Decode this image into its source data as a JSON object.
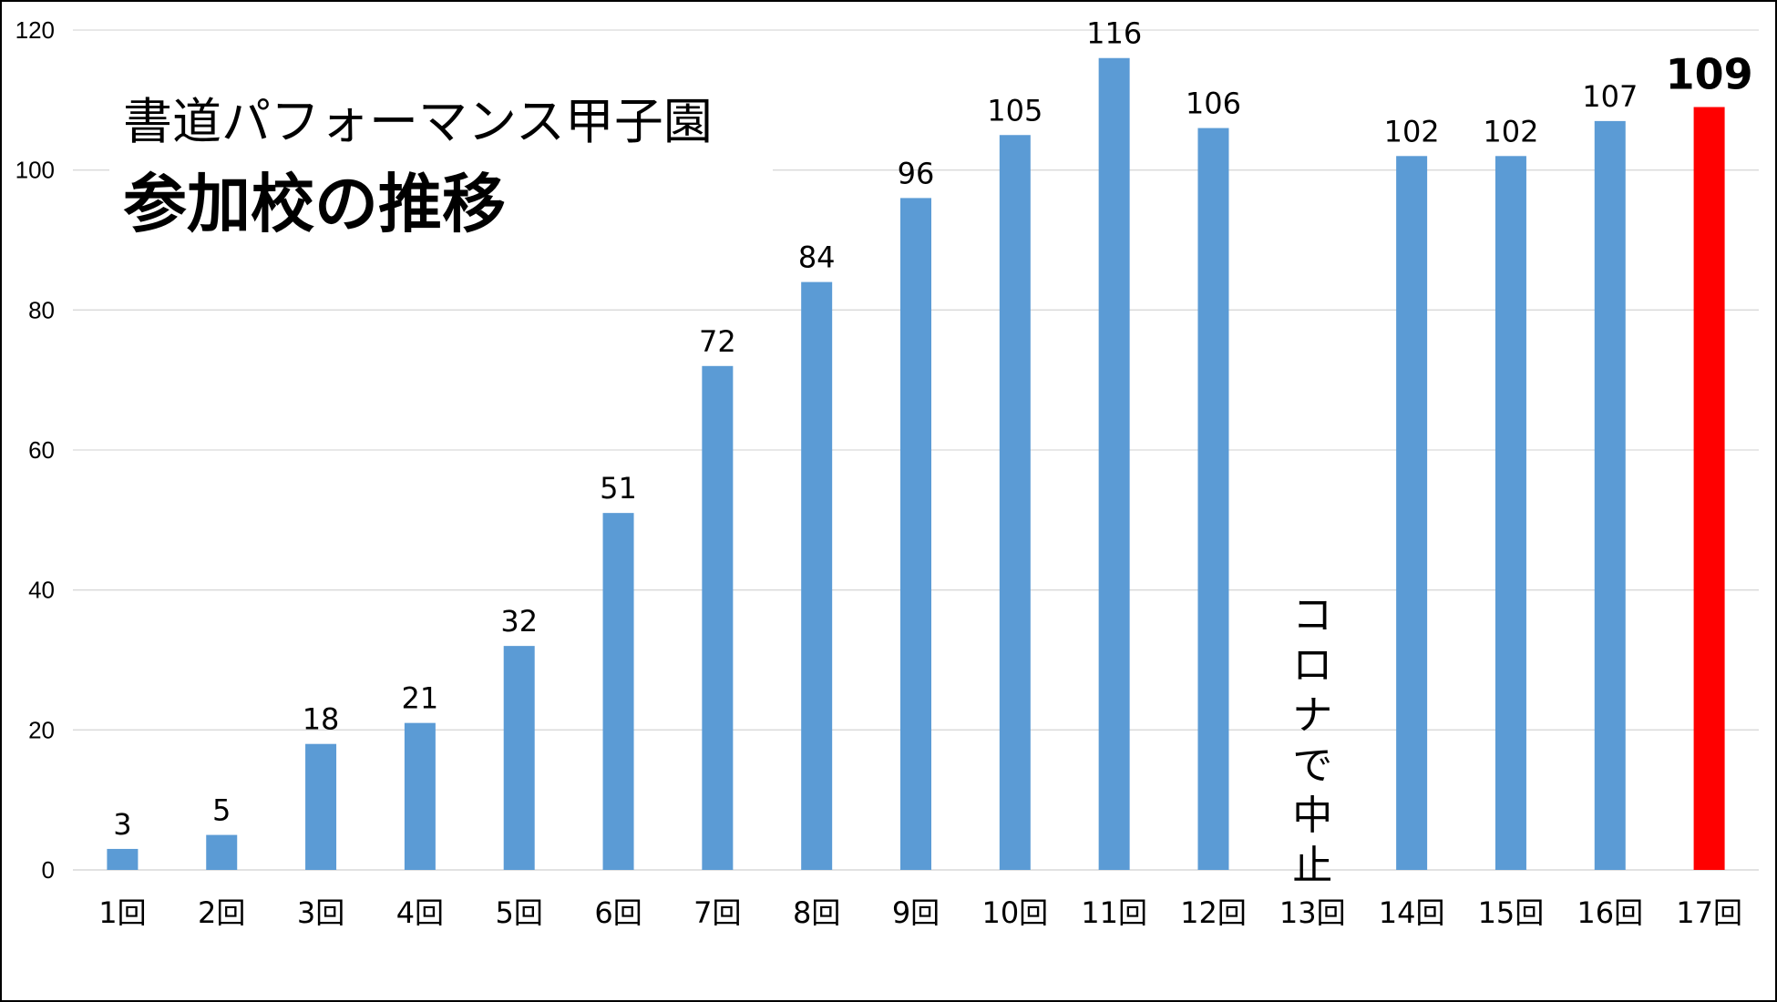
{
  "chart_data": {
    "type": "bar",
    "title": "書道パフォーマンス甲子園",
    "subtitle": "参加校の推移",
    "xlabel": "",
    "ylabel": "",
    "ylim": [
      0,
      120
    ],
    "yticks": [
      0,
      20,
      40,
      60,
      80,
      100,
      120
    ],
    "grid": true,
    "categories": [
      "1回",
      "2回",
      "3回",
      "4回",
      "5回",
      "6回",
      "7回",
      "8回",
      "9回",
      "10回",
      "11回",
      "12回",
      "13回",
      "14回",
      "15回",
      "16回",
      "17回"
    ],
    "series": [
      {
        "values": [
          3,
          5,
          18,
          21,
          32,
          51,
          72,
          84,
          96,
          105,
          116,
          106,
          null,
          102,
          102,
          107,
          109
        ]
      }
    ],
    "colors": {
      "bar": "#5b9bd5",
      "highlight": "#ff0000"
    },
    "highlight_index": 16,
    "annotations": [
      {
        "category": "13回",
        "text": "コロナで中止",
        "orientation": "vertical"
      }
    ]
  }
}
